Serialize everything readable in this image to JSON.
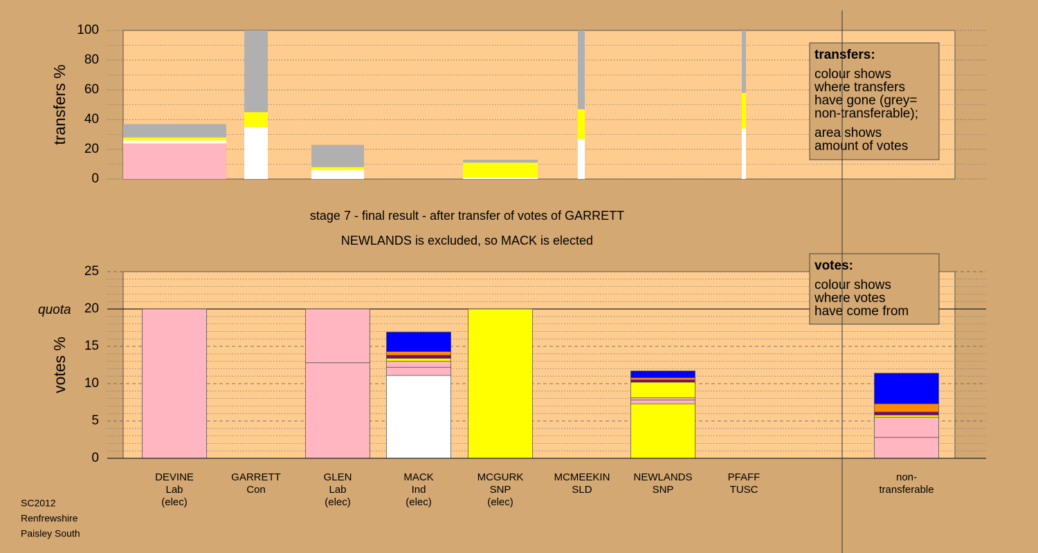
{
  "chart_data": [
    {
      "type": "stacked_bar",
      "ylabel": "transfers %",
      "ylim": [
        0,
        100
      ],
      "yticks": [
        0,
        20,
        40,
        60,
        80,
        100
      ],
      "yminor": [
        10,
        30,
        50,
        70,
        90
      ],
      "segments": [
        [
          {
            "value": 24,
            "color": "#ffb6c1"
          },
          {
            "value": 2,
            "color": "#ffffff"
          },
          {
            "value": 2,
            "color": "#ffff00"
          },
          {
            "value": 9,
            "color": "#b0b0b0"
          }
        ],
        [
          {
            "value": 35,
            "color": "#ffffff"
          },
          {
            "value": 10,
            "color": "#ffff00"
          },
          {
            "value": 55,
            "color": "#b0b0b0"
          }
        ],
        [
          {
            "value": 6,
            "color": "#ffffff"
          },
          {
            "value": 2,
            "color": "#ffff00"
          },
          {
            "value": 15,
            "color": "#b0b0b0"
          }
        ],
        [
          {
            "value": 1,
            "color": "#ffffff"
          },
          {
            "value": 10,
            "color": "#ffff00"
          },
          {
            "value": 2,
            "color": "#b0b0b0"
          }
        ],
        [
          {
            "value": 27,
            "color": "#ffffff"
          },
          {
            "value": 20,
            "color": "#ffff00"
          },
          {
            "value": 53,
            "color": "#b0b0b0"
          }
        ],
        [
          {
            "value": 34,
            "color": "#ffffff"
          },
          {
            "value": 24,
            "color": "#ffff00"
          },
          {
            "value": 42,
            "color": "#b0b0b0"
          }
        ]
      ],
      "legend": {
        "title": "transfers:",
        "paragraphs": [
          [
            "colour shows",
            "where transfers",
            "have gone (grey=",
            "non-transferable);"
          ],
          [
            "area shows",
            "amount of votes"
          ]
        ]
      }
    },
    {
      "type": "stacked_bar",
      "title": [
        "stage 7 - final result - after transfer of votes of GARRETT",
        "NEWLANDS is excluded, so MACK is elected"
      ],
      "ylabel": "votes %",
      "ylim": [
        0,
        25
      ],
      "yticks": [
        0,
        5,
        10,
        15,
        20,
        25
      ],
      "yminor": [
        1,
        2,
        3,
        4,
        6,
        7,
        8,
        9,
        11,
        12,
        13,
        14,
        16,
        17,
        18,
        19,
        21,
        22,
        23,
        24
      ],
      "quota": {
        "value": 20,
        "label": "quota"
      },
      "categories": [
        [
          "DEVINE",
          "Lab",
          "(elec)"
        ],
        [
          "GARRETT",
          "Con"
        ],
        [
          "GLEN",
          "Lab",
          "(elec)"
        ],
        [
          "MACK",
          "Ind",
          "(elec)"
        ],
        [
          "MCGURK",
          "SNP",
          "(elec)"
        ],
        [
          "MCMEEKIN",
          "SLD"
        ],
        [
          "NEWLANDS",
          "SNP"
        ],
        [
          "PFAFF",
          "TUSC"
        ],
        [
          "non-",
          "transferable"
        ]
      ],
      "segments": [
        [
          {
            "value": 20,
            "color": "#ffb6c1"
          }
        ],
        [],
        [
          {
            "value": 12.8,
            "color": "#ffb6c1"
          },
          {
            "value": 7.2,
            "color": "#ffb6c1"
          }
        ],
        [
          {
            "value": 11.1,
            "color": "#ffffff"
          },
          {
            "value": 1.1,
            "color": "#ffb6c1"
          },
          {
            "value": 0.8,
            "color": "#ffb6c1"
          },
          {
            "value": 0.4,
            "color": "#ffff00"
          },
          {
            "value": 0.4,
            "color": "#800080"
          },
          {
            "value": 0.5,
            "color": "#ff8c00"
          },
          {
            "value": 2.6,
            "color": "#0000ff"
          }
        ],
        [
          {
            "value": 20,
            "color": "#ffff00"
          }
        ],
        [],
        [
          {
            "value": 7.3,
            "color": "#ffff00"
          },
          {
            "value": 0.5,
            "color": "#ffb6c1"
          },
          {
            "value": 0.3,
            "color": "#ffb6c1"
          },
          {
            "value": 2.1,
            "color": "#ffff00"
          },
          {
            "value": 0.3,
            "color": "#800080"
          },
          {
            "value": 0.3,
            "color": "#ff8c00"
          },
          {
            "value": 0.9,
            "color": "#0000ff"
          }
        ],
        [],
        [
          {
            "value": 2.8,
            "color": "#ffb6c1"
          },
          {
            "value": 2.7,
            "color": "#ffb6c1"
          },
          {
            "value": 0.3,
            "color": "#ffff00"
          },
          {
            "value": 0.4,
            "color": "#800080"
          },
          {
            "value": 1.1,
            "color": "#ff8c00"
          },
          {
            "value": 4.1,
            "color": "#0000ff"
          }
        ]
      ],
      "legend": {
        "title": "votes:",
        "paragraphs": [
          [
            "colour shows",
            "where votes",
            "have come from"
          ]
        ]
      }
    }
  ],
  "footer": [
    "SC2012",
    "Renfrewshire",
    "Paisley South"
  ]
}
